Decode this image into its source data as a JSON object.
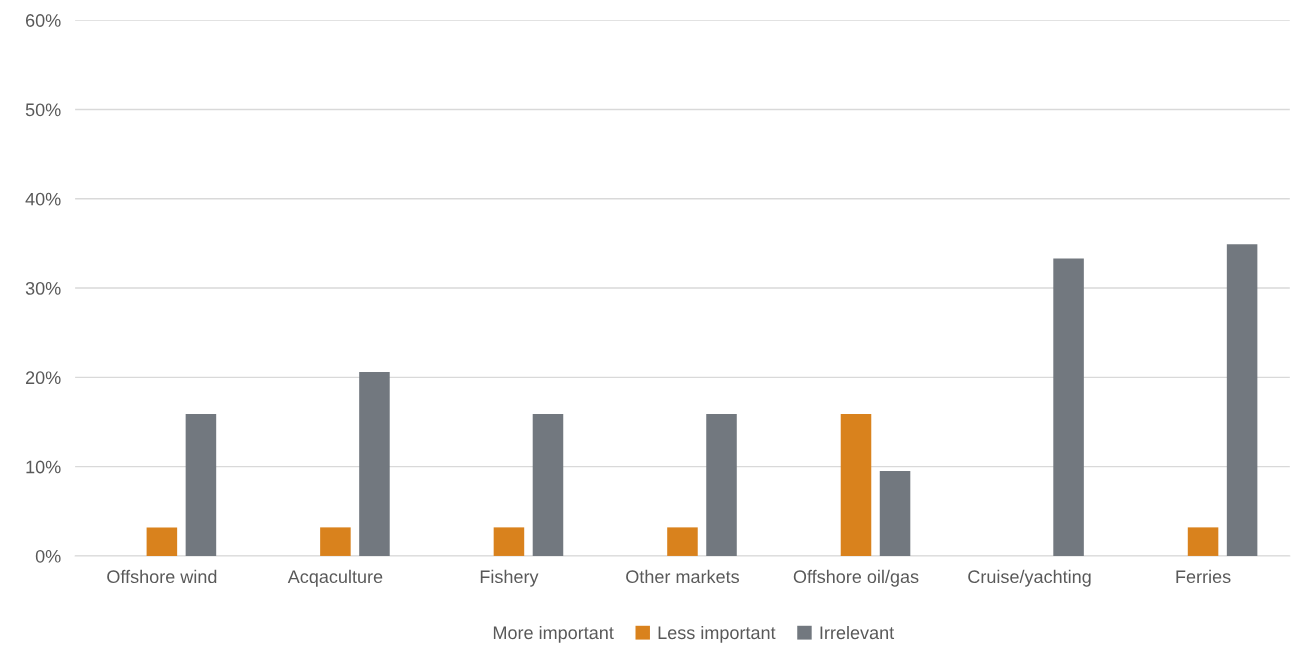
{
  "chart_data": {
    "type": "bar",
    "categories": [
      "Offshore wind",
      "Acqaculture",
      "Fishery",
      "Other markets",
      "Offshore oil/gas",
      "Cruise/yachting",
      "Ferries"
    ],
    "series": [
      {
        "name": "More important",
        "values": [
          0,
          0,
          0,
          0,
          0,
          0,
          0
        ]
      },
      {
        "name": "Less important",
        "color": "#d9821d",
        "values": [
          3.2,
          3.2,
          3.2,
          3.2,
          15.9,
          0,
          3.2
        ]
      },
      {
        "name": "Irrelevant",
        "color": "#72787f",
        "values": [
          15.9,
          20.6,
          15.9,
          15.9,
          9.5,
          33.3,
          34.9
        ]
      }
    ],
    "ylim": [
      0,
      60
    ],
    "yticks": [
      {
        "value": 0,
        "label": "0%"
      },
      {
        "value": 10,
        "label": "10%"
      },
      {
        "value": 20,
        "label": "20%"
      },
      {
        "value": 30,
        "label": "30%"
      },
      {
        "value": 40,
        "label": "40%"
      },
      {
        "value": 50,
        "label": "50%"
      },
      {
        "value": 60,
        "label": "60%"
      }
    ],
    "grid": "y",
    "legend": "bottom"
  }
}
